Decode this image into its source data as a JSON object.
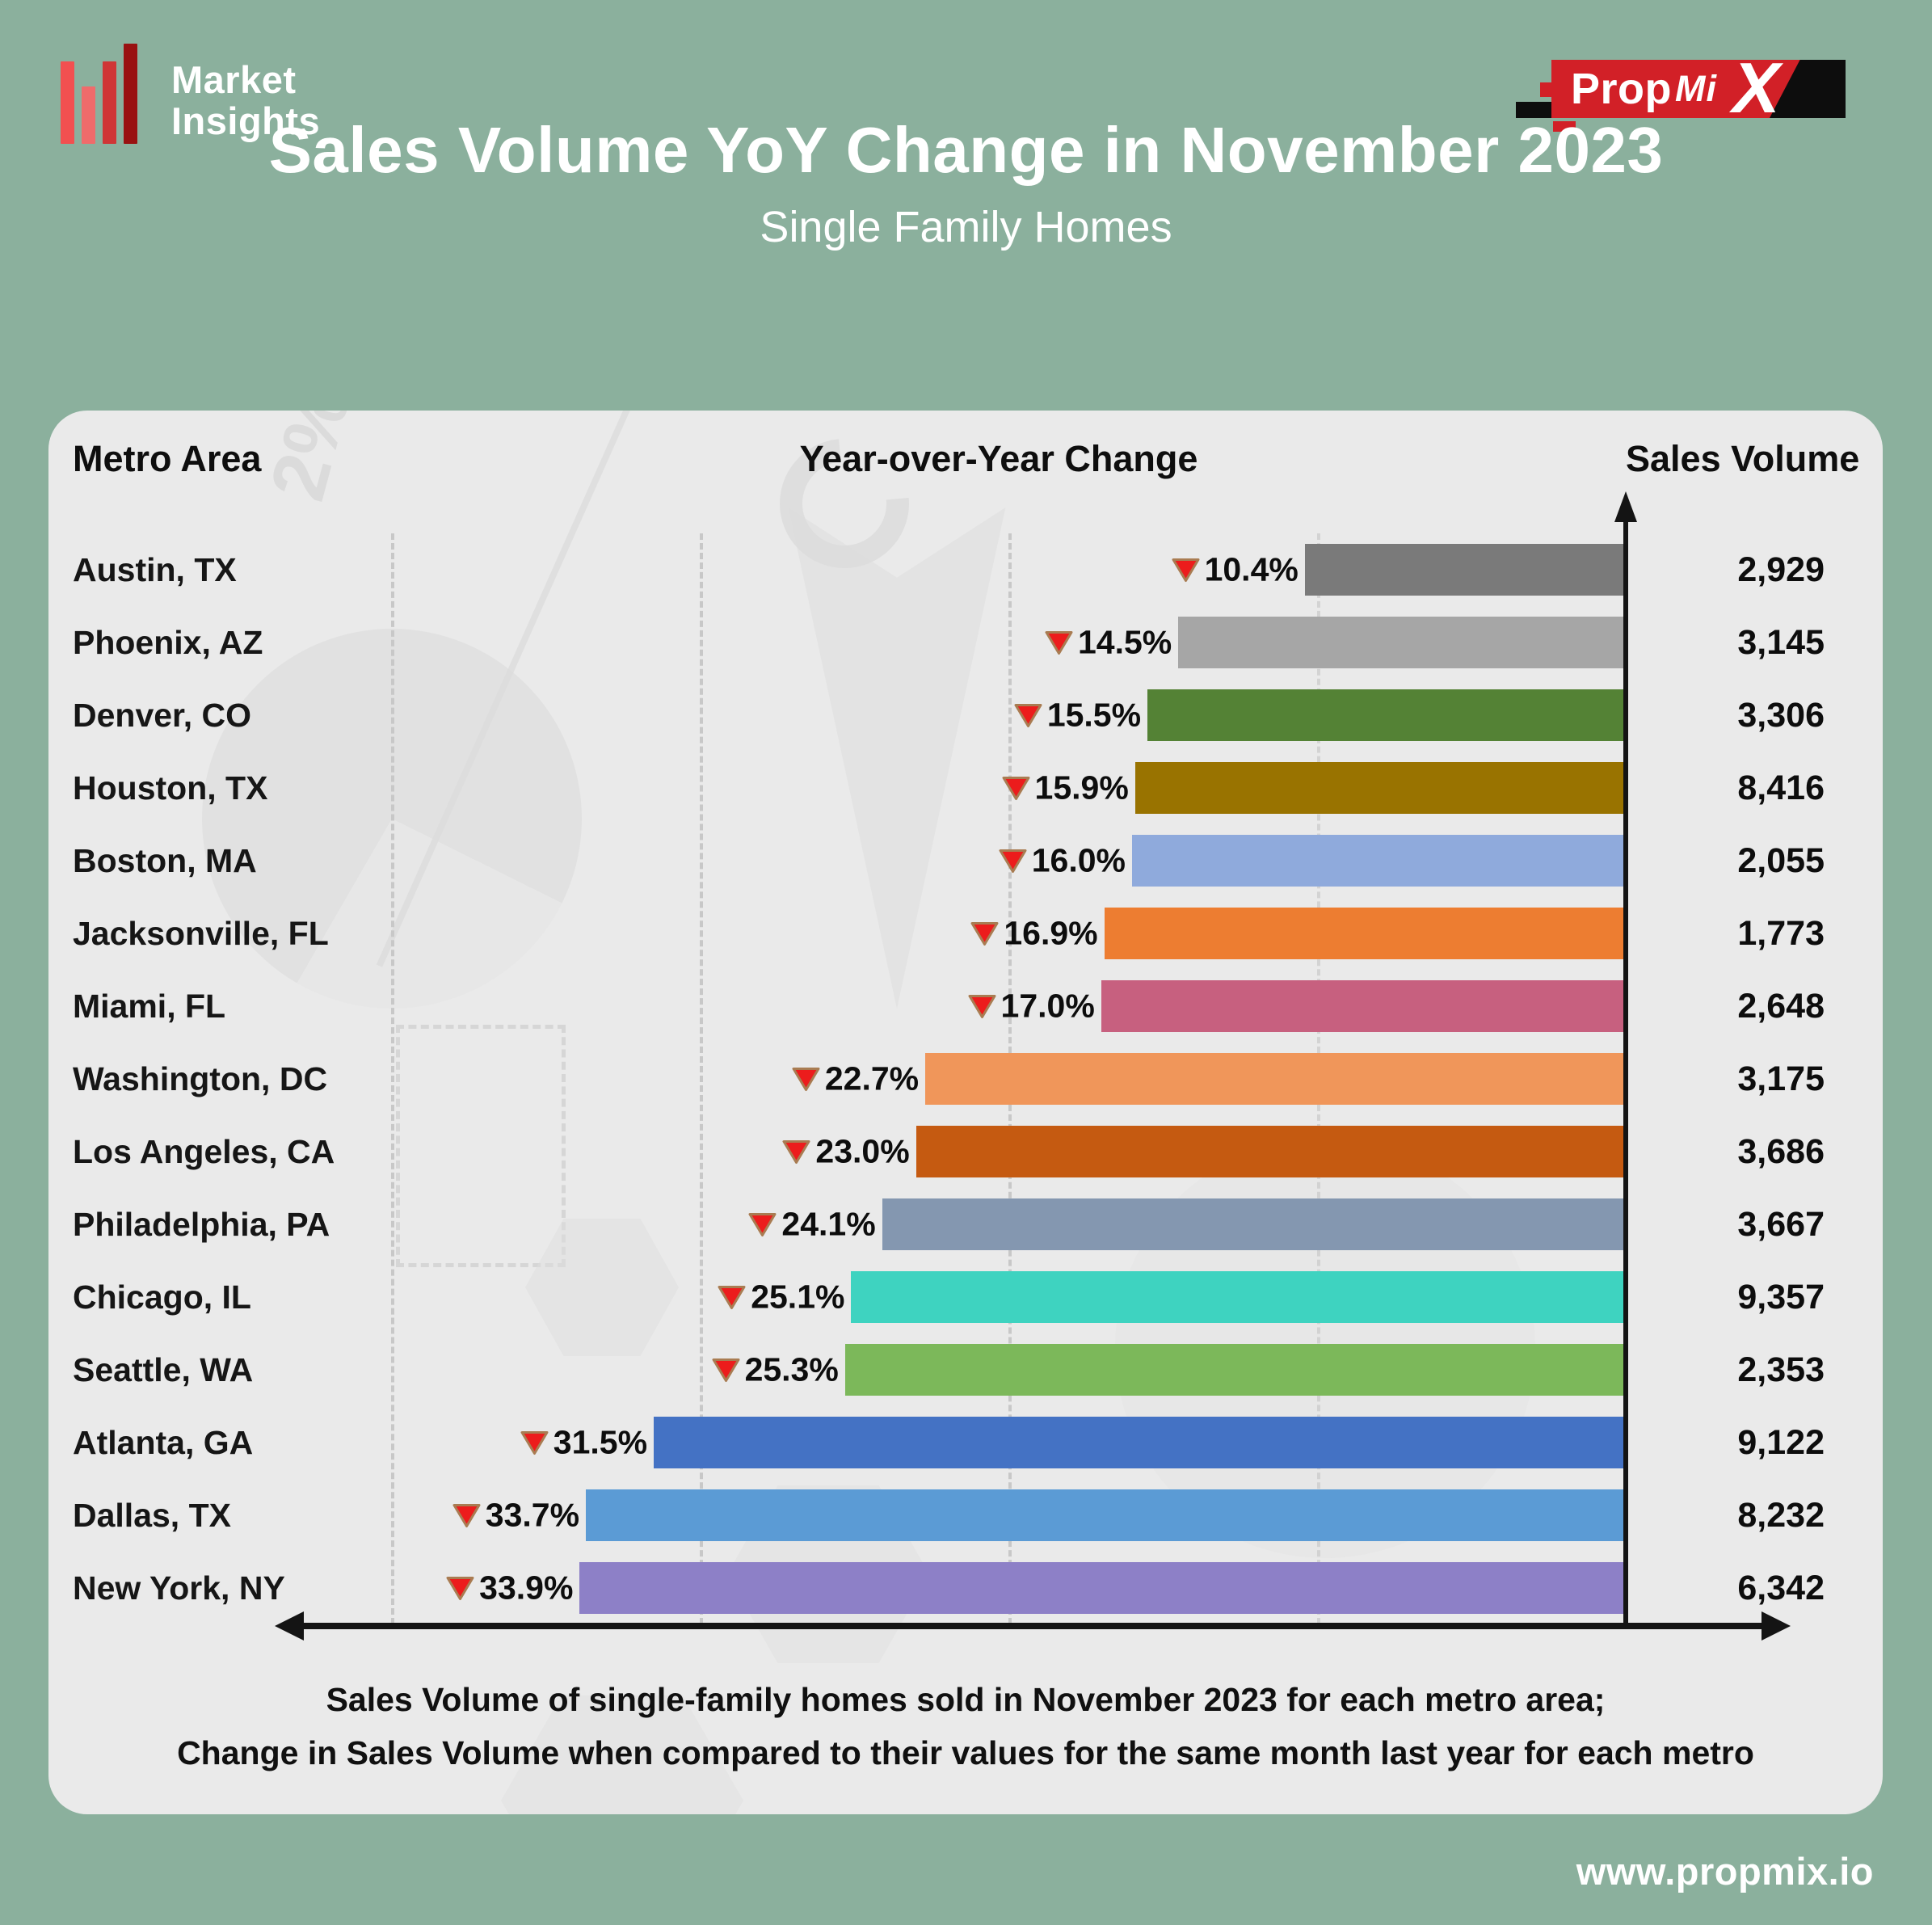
{
  "brand": {
    "line1": "Market",
    "line2": "Insights",
    "icon_colors": [
      "#f25050",
      "#ef6b6b",
      "#cf3636",
      "#991111"
    ]
  },
  "propmix": {
    "prop": "Prop",
    "mi": "Mi",
    "x": "X",
    "red": "#d22027",
    "black": "#0d0d0d"
  },
  "title": "Sales Volume YoY Change in November 2023",
  "subtitle": "Single Family Homes",
  "columns": {
    "metro": "Metro Area",
    "yoy": "Year-over-Year Change",
    "volume": "Sales Volume"
  },
  "footer": {
    "line1": "Sales Volume of single-family homes sold in November 2023 for each metro area;",
    "line2": "Change in Sales Volume when compared to their values for the same month last year for each metro"
  },
  "website": "www.propmix.io",
  "theme": {
    "background": "#8bb09d",
    "card": "#eaeaea",
    "triangle_fill": "#ec1c1c",
    "triangle_stroke": "#a97c52",
    "axis": "#141414"
  },
  "chart_data": {
    "type": "bar",
    "orientation": "horizontal",
    "title": "Sales Volume YoY Change in November 2023",
    "subtitle": "Single Family Homes",
    "categories": [
      "Austin, TX",
      "Phoenix, AZ",
      "Denver, CO",
      "Houston, TX",
      "Boston, MA",
      "Jacksonville, FL",
      "Miami, FL",
      "Washington, DC",
      "Los Angeles, CA",
      "Philadelphia, PA",
      "Chicago, IL",
      "Seattle, WA",
      "Atlanta, GA",
      "Dallas, TX",
      "New York, NY"
    ],
    "series": [
      {
        "name": "YoY Change (%)",
        "values": [
          -10.4,
          -14.5,
          -15.5,
          -15.9,
          -16.0,
          -16.9,
          -17.0,
          -22.7,
          -23.0,
          -24.1,
          -25.1,
          -25.3,
          -31.5,
          -33.7,
          -33.9
        ]
      },
      {
        "name": "Sales Volume",
        "values": [
          2929,
          3145,
          3306,
          8416,
          2055,
          1773,
          2648,
          3175,
          3686,
          3667,
          9357,
          2353,
          9122,
          8232,
          6342
        ]
      }
    ],
    "bar_colors": [
      "#7a7a7a",
      "#a6a6a6",
      "#548235",
      "#997300",
      "#8faadc",
      "#ed7d31",
      "#c7607f",
      "#f0965a",
      "#c55a11",
      "#8497b0",
      "#3ed3c0",
      "#7cb85a",
      "#4472c4",
      "#5b9bd5",
      "#8d80c7"
    ],
    "xlim": [
      -40.64,
      0
    ],
    "gridlines": [
      -40,
      -30,
      -20,
      -10
    ],
    "grid": true,
    "legend": false
  },
  "rows": [
    {
      "metro": "Austin, TX",
      "yoy_pct": 10.4,
      "yoy_display": "10.4%",
      "volume_display": "2,929",
      "color": "#7a7a7a"
    },
    {
      "metro": "Phoenix, AZ",
      "yoy_pct": 14.5,
      "yoy_display": "14.5%",
      "volume_display": "3,145",
      "color": "#a6a6a6"
    },
    {
      "metro": "Denver, CO",
      "yoy_pct": 15.5,
      "yoy_display": "15.5%",
      "volume_display": "3,306",
      "color": "#548235"
    },
    {
      "metro": "Houston, TX",
      "yoy_pct": 15.9,
      "yoy_display": "15.9%",
      "volume_display": "8,416",
      "color": "#997300"
    },
    {
      "metro": "Boston, MA",
      "yoy_pct": 16.0,
      "yoy_display": "16.0%",
      "volume_display": "2,055",
      "color": "#8faadc"
    },
    {
      "metro": "Jacksonville, FL",
      "yoy_pct": 16.9,
      "yoy_display": "16.9%",
      "volume_display": "1,773",
      "color": "#ed7d31"
    },
    {
      "metro": "Miami, FL",
      "yoy_pct": 17.0,
      "yoy_display": "17.0%",
      "volume_display": "2,648",
      "color": "#c7607f"
    },
    {
      "metro": "Washington, DC",
      "yoy_pct": 22.7,
      "yoy_display": "22.7%",
      "volume_display": "3,175",
      "color": "#f0965a"
    },
    {
      "metro": "Los Angeles, CA",
      "yoy_pct": 23.0,
      "yoy_display": "23.0%",
      "volume_display": "3,686",
      "color": "#c55a11"
    },
    {
      "metro": "Philadelphia, PA",
      "yoy_pct": 24.1,
      "yoy_display": "24.1%",
      "volume_display": "3,667",
      "color": "#8497b0"
    },
    {
      "metro": "Chicago, IL",
      "yoy_pct": 25.1,
      "yoy_display": "25.1%",
      "volume_display": "9,357",
      "color": "#3ed3c0"
    },
    {
      "metro": "Seattle, WA",
      "yoy_pct": 25.3,
      "yoy_display": "25.3%",
      "volume_display": "2,353",
      "color": "#7cb85a"
    },
    {
      "metro": "Atlanta, GA",
      "yoy_pct": 31.5,
      "yoy_display": "31.5%",
      "volume_display": "9,122",
      "color": "#4472c4"
    },
    {
      "metro": "Dallas, TX",
      "yoy_pct": 33.7,
      "yoy_display": "33.7%",
      "volume_display": "8,232",
      "color": "#5b9bd5"
    },
    {
      "metro": "New York, NY",
      "yoy_pct": 33.9,
      "yoy_display": "33.9%",
      "volume_display": "6,342",
      "color": "#8d80c7"
    }
  ]
}
